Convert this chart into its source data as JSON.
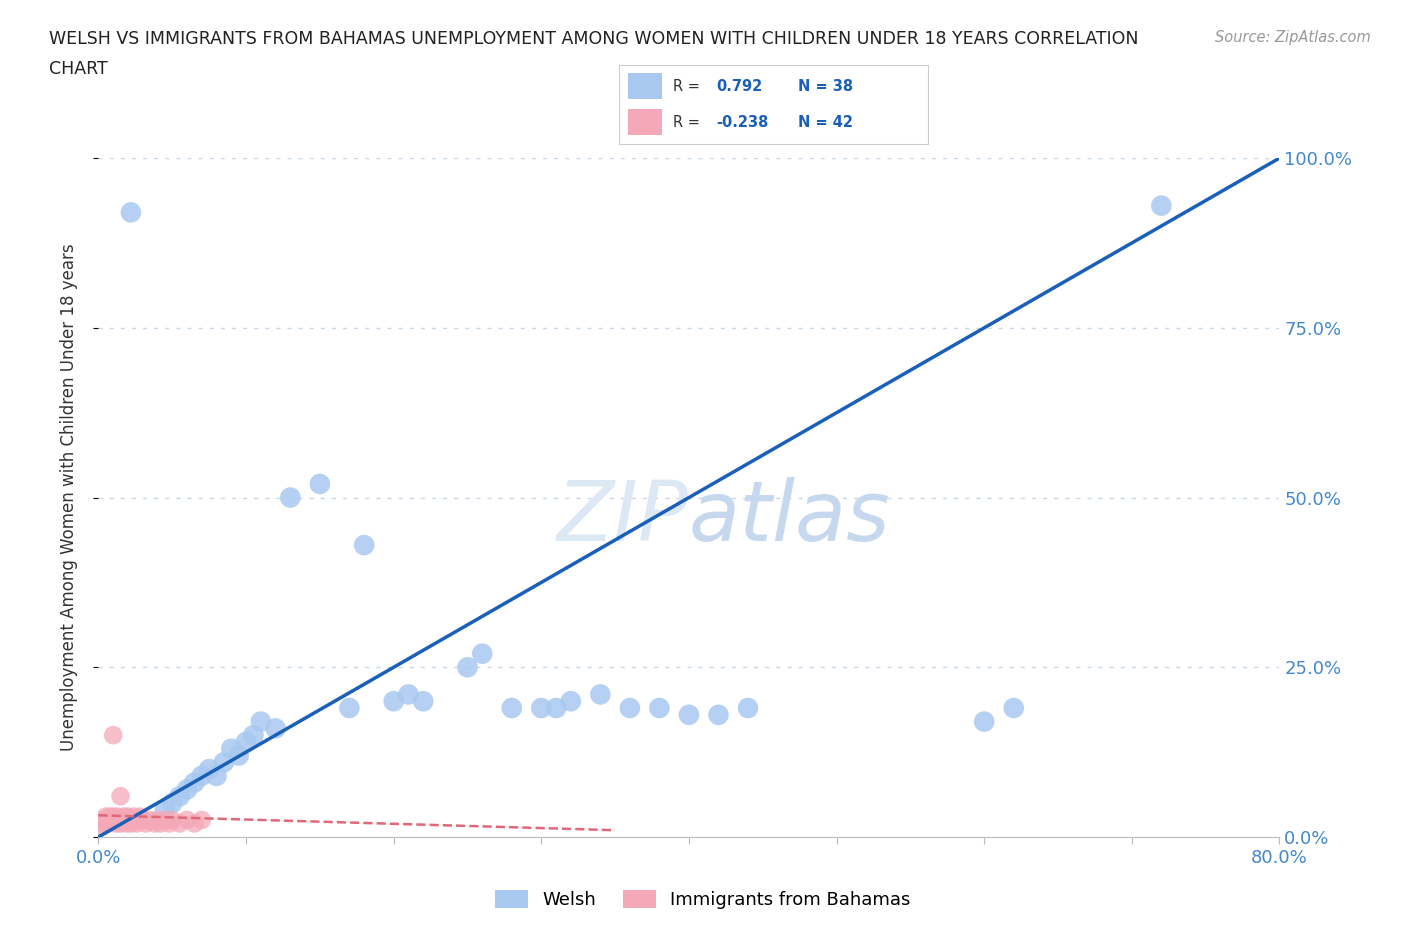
{
  "title_line1": "WELSH VS IMMIGRANTS FROM BAHAMAS UNEMPLOYMENT AMONG WOMEN WITH CHILDREN UNDER 18 YEARS CORRELATION",
  "title_line2": "CHART",
  "source": "Source: ZipAtlas.com",
  "ylabel": "Unemployment Among Women with Children Under 18 years",
  "xlim": [
    0.0,
    0.8
  ],
  "ylim": [
    0.0,
    1.0
  ],
  "welsh_R": 0.792,
  "welsh_N": 38,
  "bahamas_R": -0.238,
  "bahamas_N": 42,
  "welsh_color": "#a8c8f0",
  "bahamas_color": "#f4a8b8",
  "welsh_line_color": "#1a5fb8",
  "bahamas_line_color": "#e06878",
  "legend_welsh": "Welsh",
  "legend_bahamas": "Immigrants from Bahamas",
  "grid_color": "#c8d8e8",
  "bg_color": "#ffffff",
  "right_ytick_color": "#4488cc",
  "xtick_color": "#4488cc",
  "welsh_x": [
    0.022,
    0.045,
    0.05,
    0.055,
    0.06,
    0.065,
    0.07,
    0.075,
    0.08,
    0.085,
    0.09,
    0.095,
    0.1,
    0.105,
    0.11,
    0.12,
    0.13,
    0.15,
    0.17,
    0.18,
    0.2,
    0.21,
    0.22,
    0.25,
    0.26,
    0.28,
    0.3,
    0.31,
    0.32,
    0.34,
    0.36,
    0.38,
    0.4,
    0.42,
    0.44,
    0.6,
    0.62,
    0.72
  ],
  "welsh_y": [
    0.92,
    0.04,
    0.05,
    0.06,
    0.07,
    0.08,
    0.09,
    0.1,
    0.09,
    0.11,
    0.13,
    0.12,
    0.14,
    0.15,
    0.17,
    0.16,
    0.5,
    0.52,
    0.19,
    0.43,
    0.2,
    0.21,
    0.2,
    0.25,
    0.27,
    0.19,
    0.19,
    0.19,
    0.2,
    0.21,
    0.19,
    0.19,
    0.18,
    0.18,
    0.19,
    0.17,
    0.19,
    0.93
  ],
  "bahamas_x": [
    0.002,
    0.003,
    0.004,
    0.005,
    0.006,
    0.007,
    0.008,
    0.009,
    0.01,
    0.011,
    0.012,
    0.013,
    0.014,
    0.015,
    0.016,
    0.017,
    0.018,
    0.019,
    0.02,
    0.021,
    0.022,
    0.023,
    0.024,
    0.025,
    0.026,
    0.027,
    0.028,
    0.03,
    0.032,
    0.035,
    0.038,
    0.04,
    0.042,
    0.045,
    0.048,
    0.05,
    0.055,
    0.06,
    0.065,
    0.07,
    0.01,
    0.015
  ],
  "bahamas_y": [
    0.015,
    0.02,
    0.025,
    0.03,
    0.025,
    0.02,
    0.03,
    0.025,
    0.03,
    0.025,
    0.02,
    0.03,
    0.025,
    0.02,
    0.025,
    0.03,
    0.025,
    0.02,
    0.03,
    0.025,
    0.02,
    0.025,
    0.03,
    0.025,
    0.02,
    0.025,
    0.03,
    0.025,
    0.02,
    0.025,
    0.02,
    0.025,
    0.02,
    0.025,
    0.02,
    0.025,
    0.02,
    0.025,
    0.02,
    0.025,
    0.15,
    0.06
  ],
  "welsh_line_x": [
    0.0,
    0.8
  ],
  "welsh_line_y": [
    0.0,
    1.0
  ],
  "bahamas_line_x": [
    0.0,
    0.35
  ],
  "bahamas_line_y": [
    0.032,
    0.01
  ]
}
